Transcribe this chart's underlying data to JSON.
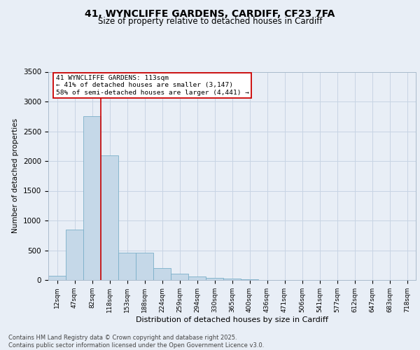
{
  "title1": "41, WYNCLIFFE GARDENS, CARDIFF, CF23 7FA",
  "title2": "Size of property relative to detached houses in Cardiff",
  "xlabel": "Distribution of detached houses by size in Cardiff",
  "ylabel": "Number of detached properties",
  "categories": [
    "12sqm",
    "47sqm",
    "82sqm",
    "118sqm",
    "153sqm",
    "188sqm",
    "224sqm",
    "259sqm",
    "294sqm",
    "330sqm",
    "365sqm",
    "400sqm",
    "436sqm",
    "471sqm",
    "506sqm",
    "541sqm",
    "577sqm",
    "612sqm",
    "647sqm",
    "683sqm",
    "718sqm"
  ],
  "values": [
    75,
    850,
    2750,
    2100,
    460,
    460,
    200,
    110,
    60,
    40,
    20,
    10,
    5,
    5,
    3,
    2,
    1,
    1,
    0,
    0,
    0
  ],
  "bar_color": "#c5d8e8",
  "bar_edge_color": "#7aafc8",
  "vline_x": 2.5,
  "vline_color": "#cc0000",
  "annotation_text": "41 WYNCLIFFE GARDENS: 113sqm\n← 41% of detached houses are smaller (3,147)\n58% of semi-detached houses are larger (4,441) →",
  "annotation_box_color": "#ffffff",
  "annotation_box_edge": "#cc0000",
  "ylim": [
    0,
    3500
  ],
  "grid_color": "#c8d4e4",
  "background_color": "#e8eef6",
  "footer_text": "Contains HM Land Registry data © Crown copyright and database right 2025.\nContains public sector information licensed under the Open Government Licence v3.0.",
  "title1_fontsize": 10,
  "title2_fontsize": 8.5,
  "yticks": [
    0,
    500,
    1000,
    1500,
    2000,
    2500,
    3000,
    3500
  ]
}
